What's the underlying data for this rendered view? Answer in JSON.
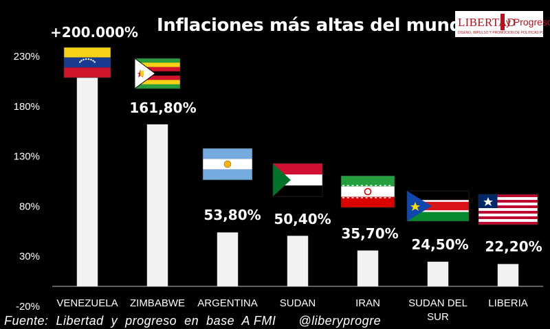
{
  "title": "Inflaciones más altas del mundo",
  "logo": {
    "name": "LIBERTAD",
    "name_suffix": "y Progreso",
    "tagline": "DISEÑO, IMPULSO Y PROMOCIÓN DE POLÍTICAS PÚBLICAS"
  },
  "source": "Fuente:  Libertad  y  progreso  en  base  A FMI      @liberyprogre",
  "chart_data": {
    "type": "bar",
    "categories": [
      "VENEZUELA",
      "ZIMBABWE",
      "ARGENTINA",
      "SUDAN",
      "IRAN",
      "SUDAN DEL SUR",
      "LIBERIA"
    ],
    "category_lines": [
      [
        "VENEZUELA"
      ],
      [
        "ZIMBABWE"
      ],
      [
        "ARGENTINA"
      ],
      [
        "SUDAN"
      ],
      [
        "IRAN"
      ],
      [
        "SUDAN DEL",
        "SUR"
      ],
      [
        "LIBERIA"
      ]
    ],
    "values": [
      200000,
      161.8,
      53.8,
      50.4,
      35.7,
      24.5,
      22.2
    ],
    "data_labels": [
      "+200.000%",
      "161,80%",
      "53,80%",
      "50,40%",
      "35,70%",
      "24,50%",
      "22,20%"
    ],
    "flags": [
      "venezuela-flag",
      "zimbabwe-flag",
      "argentina-flag",
      "sudan-flag",
      "iran-flag",
      "south-sudan-flag",
      "liberia-flag"
    ],
    "y_ticks": [
      -20,
      30,
      80,
      130,
      180,
      230
    ],
    "y_tick_labels": [
      "-20%",
      "30%",
      "80%",
      "130%",
      "180%",
      "230%"
    ],
    "ylim": [
      -20,
      230
    ],
    "bar_color": "#f2f2f2",
    "background": "#000000",
    "grid": false
  }
}
